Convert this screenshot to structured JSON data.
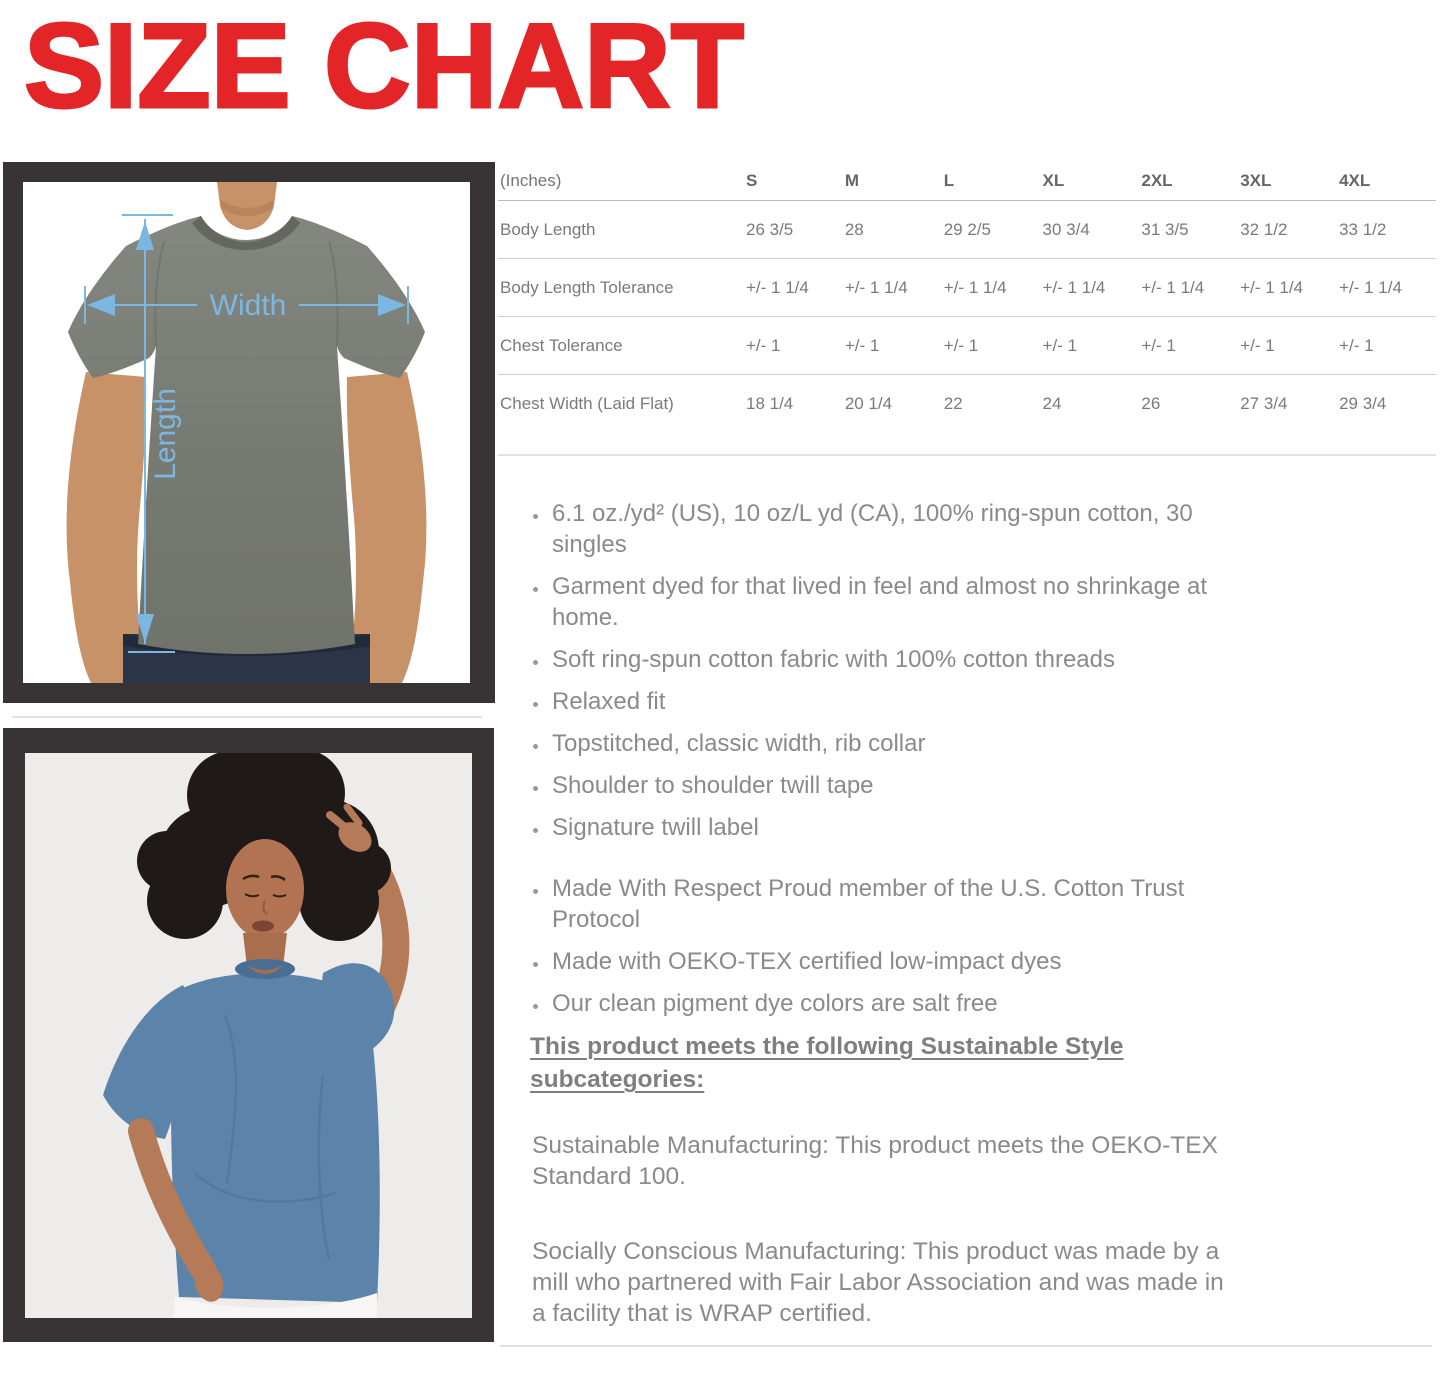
{
  "title": "SIZE CHART",
  "size_table": {
    "unit_label": "(Inches)",
    "columns": [
      "S",
      "M",
      "L",
      "XL",
      "2XL",
      "3XL",
      "4XL"
    ],
    "rows": [
      {
        "label": "Body Length",
        "values": [
          "26 3/5",
          "28",
          "29 2/5",
          "30 3/4",
          "31 3/5",
          "32 1/2",
          "33 1/2"
        ]
      },
      {
        "label": "Body Length Tolerance",
        "values": [
          "+/- 1 1/4",
          "+/- 1 1/4",
          "+/- 1 1/4",
          "+/- 1 1/4",
          "+/- 1 1/4",
          "+/- 1 1/4",
          "+/- 1 1/4"
        ]
      },
      {
        "label": "Chest Tolerance",
        "values": [
          "+/- 1",
          "+/- 1",
          "+/- 1",
          "+/- 1",
          "+/- 1",
          "+/- 1",
          "+/- 1"
        ]
      },
      {
        "label": "Chest Width (Laid Flat)",
        "values": [
          "18 1/4",
          "20 1/4",
          "22",
          "24",
          "26",
          "27 3/4",
          "29 3/4"
        ]
      }
    ]
  },
  "features": [
    "6.1 oz./yd² (US), 10 oz/L yd (CA), 100% ring-spun cotton, 30 singles",
    "Garment dyed for that lived in feel and almost no shrinkage at home.",
    "Soft ring-spun cotton fabric with 100% cotton threads",
    "Relaxed fit",
    "Topstitched, classic width, rib collar",
    "Shoulder to shoulder twill tape",
    "Signature twill label"
  ],
  "sustainability_features": [
    "Made With Respect Proud member of the U.S. Cotton Trust Protocol",
    "Made with OEKO-TEX certified low-impact dyes",
    "Our clean pigment dye colors are salt free"
  ],
  "sustainable_style": {
    "heading": "This product meets the following Sustainable Style subcategories:",
    "paragraphs": [
      "Sustainable Manufacturing: This product meets the OEKO-TEX Standard 100.",
      "Socially Conscious Manufacturing: This product was made by a mill who partnered with Fair Labor Association and was made in a facility that is WRAP certified."
    ]
  },
  "measurement_diagram": {
    "width_label": "Width",
    "length_label": "Length"
  },
  "colors": {
    "title_red": "#e42527",
    "frame_dark": "#383435",
    "annotation_blue": "#7cb7e2",
    "body_text_gray": "#8a8a8a",
    "table_text_gray": "#7a7a7a",
    "mens_shirt_gray": "#7b7e76",
    "womens_shirt_blue": "#5c83aa"
  }
}
